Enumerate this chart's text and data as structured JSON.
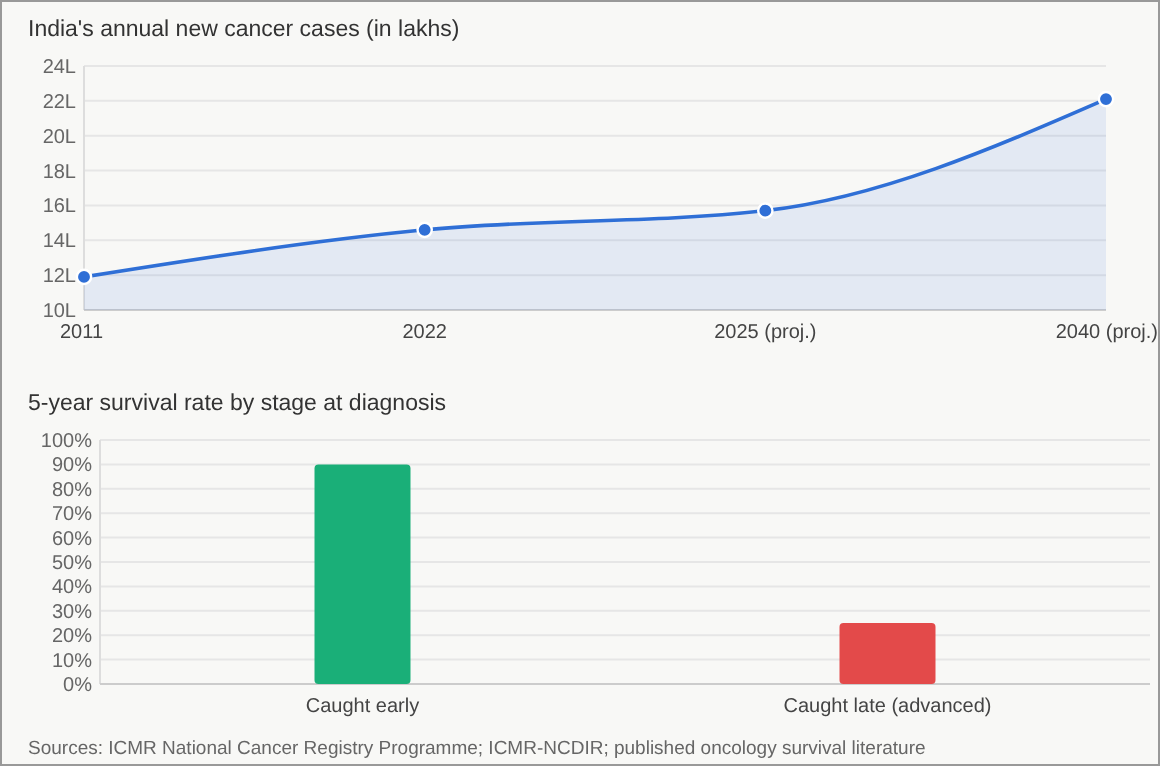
{
  "chart_data": [
    {
      "type": "area",
      "title": "India's annual new cancer cases (in lakhs)",
      "categories": [
        "2011",
        "2022",
        "2025 (proj.)",
        "2040 (proj.)"
      ],
      "series": [
        {
          "color": "#2f6fd6",
          "values": [
            11.9,
            14.6,
            15.7,
            22.1
          ]
        }
      ],
      "ylim": [
        10,
        24
      ],
      "yticks": [
        {
          "value": 10,
          "label": "10L"
        },
        {
          "value": 12,
          "label": "12L"
        },
        {
          "value": 14,
          "label": "14L"
        },
        {
          "value": 16,
          "label": "16L"
        },
        {
          "value": 18,
          "label": "18L"
        },
        {
          "value": 20,
          "label": "20L"
        },
        {
          "value": 22,
          "label": "22L"
        },
        {
          "value": 24,
          "label": "24L"
        }
      ],
      "grid": "y",
      "marker": "circle",
      "line_style": "solid"
    },
    {
      "type": "bar",
      "title": "5-year survival rate by stage at diagnosis",
      "categories": [
        "Caught early",
        "Caught late (advanced)"
      ],
      "values": [
        90,
        25
      ],
      "colors": [
        "#1aaf78",
        "#e34a4a"
      ],
      "ylim": [
        0,
        100
      ],
      "yticks": [
        {
          "value": 0,
          "label": "0%"
        },
        {
          "value": 10,
          "label": "10%"
        },
        {
          "value": 20,
          "label": "20%"
        },
        {
          "value": 30,
          "label": "30%"
        },
        {
          "value": 40,
          "label": "40%"
        },
        {
          "value": 50,
          "label": "50%"
        },
        {
          "value": 60,
          "label": "60%"
        },
        {
          "value": 70,
          "label": "70%"
        },
        {
          "value": 80,
          "label": "80%"
        },
        {
          "value": 90,
          "label": "90%"
        },
        {
          "value": 100,
          "label": "100%"
        }
      ],
      "grid": "y",
      "annotations": [
        "Sources: ICMR National Cancer Registry Programme; ICMR-NCDIR; published oncology survival literature"
      ]
    }
  ]
}
